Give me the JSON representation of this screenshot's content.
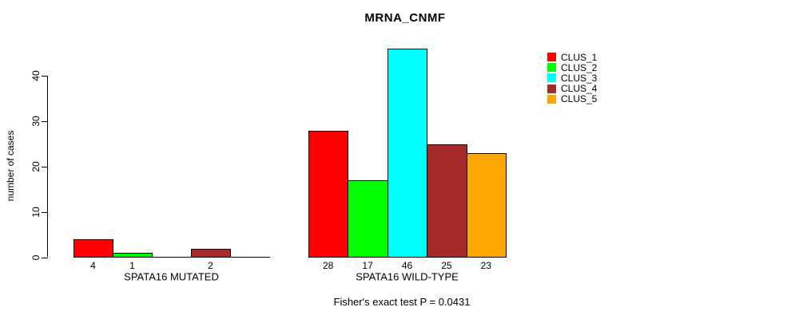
{
  "chart_data": {
    "type": "bar",
    "title": "MRNA_CNMF",
    "xlabel": "",
    "ylabel": "number of cases",
    "ylim": [
      0,
      46
    ],
    "y_ticks": [
      0,
      10,
      20,
      30,
      40
    ],
    "grid": false,
    "legend_position": "right",
    "categories": [
      "CLUS_1",
      "CLUS_2",
      "CLUS_3",
      "CLUS_4",
      "CLUS_5"
    ],
    "series_colors": [
      "#ff0000",
      "#00ff00",
      "#00ffff",
      "#a52a2a",
      "#ffa500"
    ],
    "legend": [
      {
        "label": "CLUS_1",
        "color": "#ff0000"
      },
      {
        "label": "CLUS_2",
        "color": "#00ff00"
      },
      {
        "label": "CLUS_3",
        "color": "#00ffff"
      },
      {
        "label": "CLUS_4",
        "color": "#a52a2a"
      },
      {
        "label": "CLUS_5",
        "color": "#ffa500"
      }
    ],
    "groups": [
      {
        "label": "SPATA16 MUTATED",
        "values": [
          4,
          1,
          0,
          2,
          0
        ]
      },
      {
        "label": "SPATA16 WILD-TYPE",
        "values": [
          28,
          17,
          46,
          25,
          23
        ]
      }
    ],
    "annotation": "Fisher's exact test P = 0.0431"
  }
}
